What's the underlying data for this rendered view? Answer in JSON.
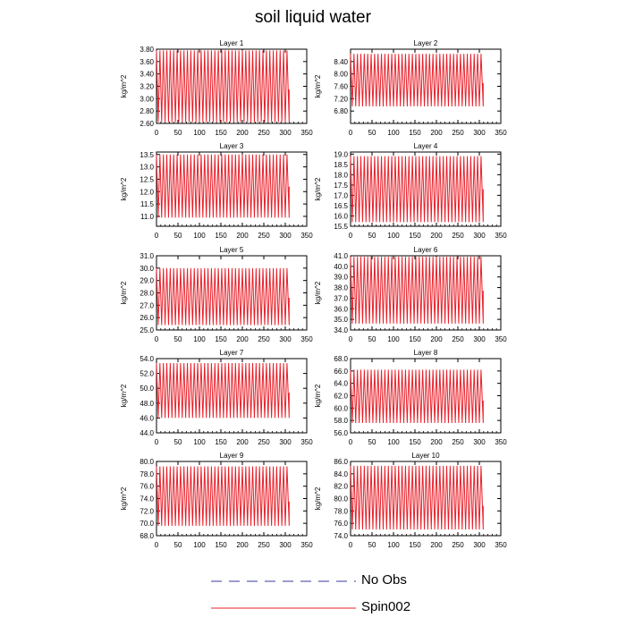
{
  "title": "soil liquid water",
  "colors": {
    "spin": "#e8202a",
    "no_obs": "#3a3aa0",
    "axis": "#000000"
  },
  "legend": {
    "items": [
      {
        "label": "No Obs",
        "style": "dashed",
        "color": "#3a3aa0"
      },
      {
        "label": "Spin002",
        "style": "solid",
        "color": "#e8202a"
      }
    ]
  },
  "chart_data": [
    {
      "type": "line",
      "title": "Layer 1",
      "ylabel": "kg/m^2",
      "xlim": [
        0,
        350
      ],
      "ylim": [
        2.6,
        3.8
      ],
      "xticks": [
        0,
        50,
        100,
        150,
        200,
        250,
        300,
        350
      ],
      "yticks": [
        "2.60",
        "2.80",
        "3.00",
        "3.20",
        "3.40",
        "3.60",
        "3.80"
      ],
      "series": [
        {
          "pattern": "oscillation",
          "period_days": 8,
          "x_start": 0,
          "x_end": 305,
          "min": 2.62,
          "max": 3.78,
          "final": 3.15
        }
      ]
    },
    {
      "type": "line",
      "title": "Layer 2",
      "ylabel": "kg/m^2",
      "xlim": [
        0,
        350
      ],
      "ylim": [
        6.4,
        8.8
      ],
      "xticks": [
        0,
        50,
        100,
        150,
        200,
        250,
        300,
        350
      ],
      "yticks": [
        "6.80",
        "7.20",
        "7.60",
        "8.00",
        "8.40"
      ],
      "series": [
        {
          "pattern": "oscillation",
          "period_days": 8,
          "x_start": 0,
          "x_end": 305,
          "min": 6.95,
          "max": 8.65,
          "final": 7.7
        }
      ]
    },
    {
      "type": "line",
      "title": "Layer 3",
      "ylabel": "kg/m^2",
      "xlim": [
        0,
        350
      ],
      "ylim": [
        10.6,
        13.6
      ],
      "xticks": [
        0,
        50,
        100,
        150,
        200,
        250,
        300,
        350
      ],
      "yticks": [
        "11.0",
        "11.5",
        "12.0",
        "12.5",
        "13.0",
        "13.5"
      ],
      "series": [
        {
          "pattern": "oscillation",
          "period_days": 8,
          "x_start": 0,
          "x_end": 305,
          "min": 10.95,
          "max": 13.5,
          "final": 12.2
        }
      ]
    },
    {
      "type": "line",
      "title": "Layer 4",
      "ylabel": "kg/m^2",
      "xlim": [
        0,
        350
      ],
      "ylim": [
        15.5,
        19.1
      ],
      "xticks": [
        0,
        50,
        100,
        150,
        200,
        250,
        300,
        350
      ],
      "yticks": [
        "15.5",
        "16.0",
        "16.5",
        "17.0",
        "17.5",
        "18.0",
        "18.5",
        "19.0"
      ],
      "series": [
        {
          "pattern": "oscillation",
          "period_days": 8,
          "x_start": 0,
          "x_end": 305,
          "min": 15.7,
          "max": 18.9,
          "final": 17.3
        }
      ]
    },
    {
      "type": "line",
      "title": "Layer 5",
      "ylabel": "kg/m^2",
      "xlim": [
        0,
        350
      ],
      "ylim": [
        25.0,
        31.0
      ],
      "xticks": [
        0,
        50,
        100,
        150,
        200,
        250,
        300,
        350
      ],
      "yticks": [
        "25.0",
        "26.0",
        "27.0",
        "28.0",
        "29.0",
        "30.0",
        "31.0"
      ],
      "series": [
        {
          "pattern": "oscillation",
          "period_days": 8,
          "x_start": 0,
          "x_end": 305,
          "min": 25.4,
          "max": 30.0,
          "final": 27.6
        }
      ]
    },
    {
      "type": "line",
      "title": "Layer 6",
      "ylabel": "kg/m^2",
      "xlim": [
        0,
        350
      ],
      "ylim": [
        34.0,
        41.0
      ],
      "xticks": [
        0,
        50,
        100,
        150,
        200,
        250,
        300,
        350
      ],
      "yticks": [
        "34.0",
        "35.0",
        "36.0",
        "37.0",
        "38.0",
        "39.0",
        "40.0",
        "41.0"
      ],
      "series": [
        {
          "pattern": "oscillation",
          "period_days": 8,
          "x_start": 0,
          "x_end": 305,
          "min": 34.6,
          "max": 40.9,
          "final": 37.7
        }
      ]
    },
    {
      "type": "line",
      "title": "Layer 7",
      "ylabel": "kg/m^2",
      "xlim": [
        0,
        350
      ],
      "ylim": [
        44.0,
        54.0
      ],
      "xticks": [
        0,
        50,
        100,
        150,
        200,
        250,
        300,
        350
      ],
      "yticks": [
        "44.0",
        "46.0",
        "48.0",
        "50.0",
        "52.0",
        "54.0"
      ],
      "series": [
        {
          "pattern": "oscillation",
          "period_days": 8,
          "x_start": 0,
          "x_end": 305,
          "min": 46.0,
          "max": 53.4,
          "final": 49.4
        }
      ]
    },
    {
      "type": "line",
      "title": "Layer 8",
      "ylabel": "kg/m^2",
      "xlim": [
        0,
        350
      ],
      "ylim": [
        56.0,
        68.0
      ],
      "xticks": [
        0,
        50,
        100,
        150,
        200,
        250,
        300,
        350
      ],
      "yticks": [
        "56.0",
        "58.0",
        "60.0",
        "62.0",
        "64.0",
        "66.0",
        "68.0"
      ],
      "series": [
        {
          "pattern": "oscillation",
          "period_days": 8,
          "x_start": 0,
          "x_end": 305,
          "min": 57.6,
          "max": 66.2,
          "final": 61.2
        }
      ]
    },
    {
      "type": "line",
      "title": "Layer 9",
      "ylabel": "kg/m^2",
      "xlim": [
        0,
        350
      ],
      "ylim": [
        68.0,
        80.0
      ],
      "xticks": [
        0,
        50,
        100,
        150,
        200,
        250,
        300,
        350
      ],
      "yticks": [
        "68.0",
        "70.0",
        "72.0",
        "74.0",
        "76.0",
        "78.0",
        "80.0"
      ],
      "series": [
        {
          "pattern": "oscillation",
          "period_days": 8,
          "x_start": 0,
          "x_end": 305,
          "min": 69.6,
          "max": 79.2,
          "final": 73.5
        }
      ]
    },
    {
      "type": "line",
      "title": "Layer 10",
      "ylabel": "kg/m^2",
      "xlim": [
        0,
        350
      ],
      "ylim": [
        74.0,
        86.0
      ],
      "xticks": [
        0,
        50,
        100,
        150,
        200,
        250,
        300,
        350
      ],
      "yticks": [
        "74.0",
        "76.0",
        "78.0",
        "80.0",
        "82.0",
        "84.0",
        "86.0"
      ],
      "series": [
        {
          "pattern": "oscillation",
          "period_days": 8,
          "x_start": 0,
          "x_end": 305,
          "min": 75.0,
          "max": 85.3,
          "final": 78.8
        }
      ]
    }
  ]
}
